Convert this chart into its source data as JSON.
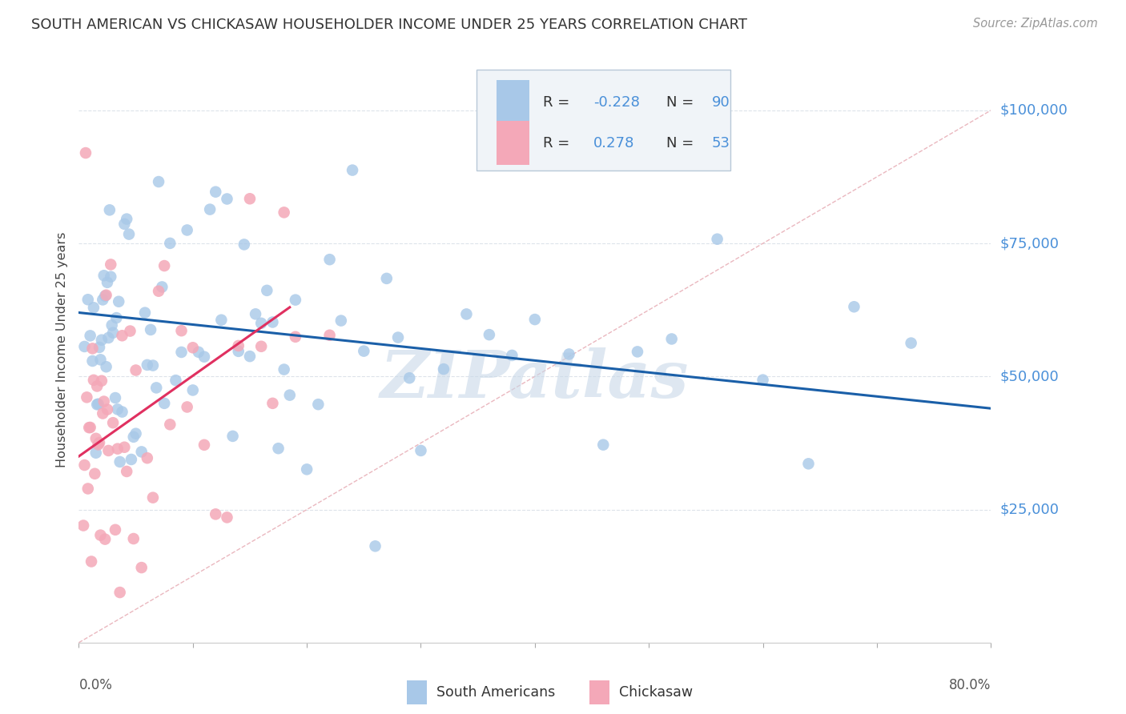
{
  "title": "SOUTH AMERICAN VS CHICKASAW HOUSEHOLDER INCOME UNDER 25 YEARS CORRELATION CHART",
  "source": "Source: ZipAtlas.com",
  "ylabel": "Householder Income Under 25 years",
  "ytick_labels": [
    "$25,000",
    "$50,000",
    "$75,000",
    "$100,000"
  ],
  "ytick_values": [
    25000,
    50000,
    75000,
    100000
  ],
  "ylim": [
    0,
    110000
  ],
  "xlim": [
    0.0,
    0.8
  ],
  "legend_label1": "South Americans",
  "legend_label2": "Chickasaw",
  "watermark": "ZIPatlas",
  "blue_line_x": [
    0.0,
    0.8
  ],
  "blue_line_y": [
    62000,
    44000
  ],
  "pink_line_x": [
    0.0,
    0.185
  ],
  "pink_line_y": [
    35000,
    63000
  ],
  "diag_line_x": [
    0.0,
    0.8
  ],
  "diag_line_y": [
    0,
    100000
  ],
  "dot_color_blue": "#a8c8e8",
  "dot_color_pink": "#f4a8b8",
  "line_color_blue": "#1a5fa8",
  "line_color_pink": "#e03060",
  "diag_line_color": "#e8b0b8",
  "background_color": "#ffffff",
  "grid_color": "#dde3ea",
  "title_color": "#333333",
  "ytick_color": "#4a90d9",
  "source_color": "#999999",
  "watermark_color": "#c8d8e8",
  "legend_box_color": "#f0f4f8",
  "legend_border_color": "#b8c8d8",
  "legend_text_color": "#333333",
  "legend_value_color": "#4a90d9"
}
